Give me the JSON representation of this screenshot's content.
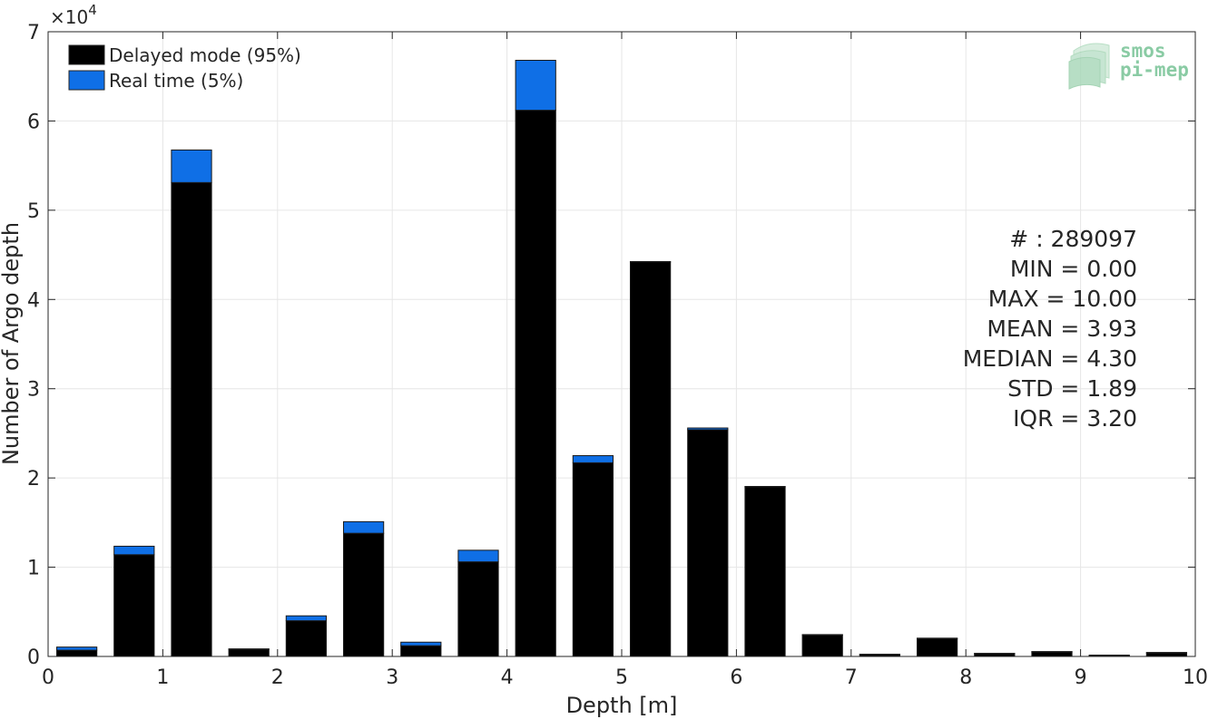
{
  "chart_data": {
    "type": "bar",
    "stacked": true,
    "xlabel": "Depth [m]",
    "ylabel": "Number of Argo depth",
    "xlim": [
      0,
      10
    ],
    "ylim": [
      0,
      70000
    ],
    "y_exponent_label": "×10",
    "y_exponent_power": "4",
    "xticks": [
      "0",
      "1",
      "2",
      "3",
      "4",
      "5",
      "6",
      "7",
      "8",
      "9",
      "10"
    ],
    "yticks": [
      "0",
      "1",
      "2",
      "3",
      "4",
      "5",
      "6",
      "7"
    ],
    "grid": true,
    "legend_position": "top-left",
    "bin_width": 0.5,
    "bin_centers": [
      0.25,
      0.75,
      1.25,
      1.75,
      2.25,
      2.75,
      3.25,
      3.75,
      4.25,
      4.75,
      5.25,
      5.75,
      6.25,
      6.75,
      7.25,
      7.75,
      8.25,
      8.75,
      9.25,
      9.75
    ],
    "series": [
      {
        "name": "Delayed mode (95%)",
        "color": "#000000",
        "values": [
          700,
          11400,
          53100,
          800,
          4000,
          13800,
          1200,
          10600,
          61200,
          21700,
          44200,
          25400,
          19000,
          2400,
          200,
          2000,
          300,
          500,
          100,
          400
        ]
      },
      {
        "name": "Real time (5%)",
        "color": "#0f6fe6",
        "values": [
          350,
          950,
          3650,
          50,
          550,
          1300,
          400,
          1300,
          5600,
          800,
          50,
          200,
          50,
          50,
          50,
          50,
          50,
          50,
          50,
          50
        ]
      }
    ]
  },
  "stats": [
    "# : 289097",
    "MIN = 0.00",
    "MAX =  10.00",
    "MEAN = 3.93",
    "MEDIAN = 4.30",
    "STD = 1.89",
    "IQR = 3.20"
  ],
  "logo": {
    "line1": "smos",
    "line2": "pi-mep",
    "color": "#6dbf8e"
  }
}
